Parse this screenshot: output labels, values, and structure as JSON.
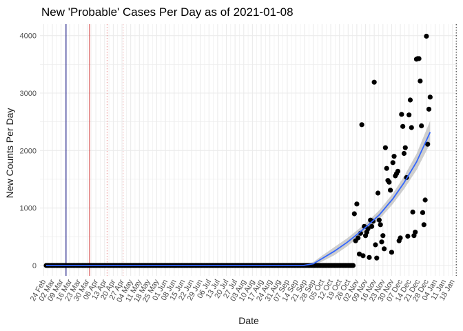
{
  "chart_data": {
    "type": "scatter",
    "title": "New 'Probable' Cases Per Day as of 2021-01-08",
    "xlabel": "Date",
    "ylabel": "New Counts Per Day",
    "x_type": "date",
    "xlim": [
      "2020-02-21",
      "2021-01-22"
    ],
    "ylim": [
      -180,
      4200
    ],
    "grid": true,
    "y_ticks": [
      0,
      1000,
      2000,
      3000,
      4000
    ],
    "x_ticks": [
      "2020-02-24",
      "2020-03-02",
      "2020-03-09",
      "2020-03-16",
      "2020-03-23",
      "2020-03-30",
      "2020-04-06",
      "2020-04-13",
      "2020-04-20",
      "2020-04-27",
      "2020-05-04",
      "2020-05-11",
      "2020-05-18",
      "2020-05-25",
      "2020-06-01",
      "2020-06-08",
      "2020-06-15",
      "2020-06-22",
      "2020-06-29",
      "2020-07-06",
      "2020-07-13",
      "2020-07-20",
      "2020-07-27",
      "2020-08-03",
      "2020-08-10",
      "2020-08-17",
      "2020-08-24",
      "2020-08-31",
      "2020-09-07",
      "2020-09-14",
      "2020-09-21",
      "2020-09-28",
      "2020-10-05",
      "2020-10-12",
      "2020-10-19",
      "2020-10-26",
      "2020-11-02",
      "2020-11-09",
      "2020-11-16",
      "2020-11-23",
      "2020-11-30",
      "2020-12-07",
      "2020-12-14",
      "2020-12-21",
      "2020-12-28",
      "2021-01-04",
      "2021-01-11",
      "2021-01-18"
    ],
    "x_tick_labels": [
      "24 Feb",
      "02 Mar",
      "09 Mar",
      "16 Mar",
      "23 Mar",
      "30 Mar",
      "06 Apr",
      "13 Apr",
      "20 Apr",
      "27 Apr",
      "04 May",
      "11 May",
      "18 May",
      "25 May",
      "01 Jun",
      "08 Jun",
      "15 Jun",
      "22 Jun",
      "29 Jun",
      "06 Jul",
      "13 Jul",
      "20 Jul",
      "27 Jul",
      "03 Aug",
      "10 Aug",
      "17 Aug",
      "24 Aug",
      "31 Aug",
      "07 Sep",
      "14 Sep",
      "21 Sep",
      "28 Sep",
      "05 Oct",
      "12 Oct",
      "19 Oct",
      "26 Oct",
      "02 Nov",
      "09 Nov",
      "16 Nov",
      "23 Nov",
      "30 Nov",
      "07 Dec",
      "14 Dec",
      "21 Dec",
      "28 Dec",
      "04 Jan",
      "11 Jan",
      "18 Jan"
    ],
    "zero_range": [
      "2020-02-26",
      "2020-10-30"
    ],
    "points": [
      {
        "x": "2020-10-31",
        "y": 900
      },
      {
        "x": "2020-11-01",
        "y": 430
      },
      {
        "x": "2020-11-02",
        "y": 1070
      },
      {
        "x": "2020-11-03",
        "y": 480
      },
      {
        "x": "2020-11-04",
        "y": 200
      },
      {
        "x": "2020-11-05",
        "y": 560
      },
      {
        "x": "2020-11-06",
        "y": 2450
      },
      {
        "x": "2020-11-07",
        "y": 170
      },
      {
        "x": "2020-11-08",
        "y": 680
      },
      {
        "x": "2020-11-09",
        "y": 520
      },
      {
        "x": "2020-11-10",
        "y": 580
      },
      {
        "x": "2020-11-11",
        "y": 640
      },
      {
        "x": "2020-11-12",
        "y": 140
      },
      {
        "x": "2020-11-13",
        "y": 790
      },
      {
        "x": "2020-11-14",
        "y": 680
      },
      {
        "x": "2020-11-15",
        "y": 770
      },
      {
        "x": "2020-11-16",
        "y": 3190
      },
      {
        "x": "2020-11-17",
        "y": 360
      },
      {
        "x": "2020-11-18",
        "y": 130
      },
      {
        "x": "2020-11-19",
        "y": 1260
      },
      {
        "x": "2020-11-20",
        "y": 790
      },
      {
        "x": "2020-11-21",
        "y": 710
      },
      {
        "x": "2020-11-22",
        "y": 410
      },
      {
        "x": "2020-11-23",
        "y": 520
      },
      {
        "x": "2020-11-24",
        "y": 290
      },
      {
        "x": "2020-11-25",
        "y": 2050
      },
      {
        "x": "2020-11-26",
        "y": 1690
      },
      {
        "x": "2020-11-27",
        "y": 1480
      },
      {
        "x": "2020-11-28",
        "y": 1450
      },
      {
        "x": "2020-11-29",
        "y": 1310
      },
      {
        "x": "2020-11-30",
        "y": 230
      },
      {
        "x": "2020-12-01",
        "y": 1790
      },
      {
        "x": "2020-12-02",
        "y": 1900
      },
      {
        "x": "2020-12-03",
        "y": 1560
      },
      {
        "x": "2020-12-04",
        "y": 1600
      },
      {
        "x": "2020-12-05",
        "y": 1640
      },
      {
        "x": "2020-12-06",
        "y": 430
      },
      {
        "x": "2020-12-07",
        "y": 480
      },
      {
        "x": "2020-12-08",
        "y": 2630
      },
      {
        "x": "2020-12-09",
        "y": 2420
      },
      {
        "x": "2020-12-10",
        "y": 1950
      },
      {
        "x": "2020-12-11",
        "y": 2050
      },
      {
        "x": "2020-12-12",
        "y": 1530
      },
      {
        "x": "2020-12-13",
        "y": 510
      },
      {
        "x": "2020-12-14",
        "y": 2620
      },
      {
        "x": "2020-12-15",
        "y": 2880
      },
      {
        "x": "2020-12-16",
        "y": 2400
      },
      {
        "x": "2020-12-17",
        "y": 930
      },
      {
        "x": "2020-12-18",
        "y": 520
      },
      {
        "x": "2020-12-19",
        "y": 580
      },
      {
        "x": "2020-12-20",
        "y": 3590
      },
      {
        "x": "2020-12-21",
        "y": 3600
      },
      {
        "x": "2020-12-22",
        "y": 3600
      },
      {
        "x": "2020-12-23",
        "y": 3210
      },
      {
        "x": "2020-12-24",
        "y": 2430
      },
      {
        "x": "2020-12-25",
        "y": 920
      },
      {
        "x": "2020-12-26",
        "y": 710
      },
      {
        "x": "2020-12-27",
        "y": 1140
      },
      {
        "x": "2020-12-28",
        "y": 3990
      },
      {
        "x": "2020-12-29",
        "y": 2110
      },
      {
        "x": "2020-12-30",
        "y": 2720
      },
      {
        "x": "2020-12-31",
        "y": 2930
      }
    ],
    "trend": {
      "x": [
        "2020-02-26",
        "2020-03-15",
        "2020-04-01",
        "2020-05-01",
        "2020-06-01",
        "2020-07-01",
        "2020-08-01",
        "2020-09-01",
        "2020-09-20",
        "2020-09-28",
        "2020-10-05",
        "2020-10-15",
        "2020-10-25",
        "2020-11-01",
        "2020-11-10",
        "2020-11-20",
        "2020-12-01",
        "2020-12-10",
        "2020-12-20",
        "2020-12-31"
      ],
      "y": [
        0,
        0,
        0,
        0,
        0,
        0,
        0,
        0,
        0,
        30,
        120,
        250,
        400,
        520,
        680,
        880,
        1160,
        1440,
        1800,
        2320
      ],
      "band": [
        0,
        0,
        0,
        0,
        0,
        0,
        0,
        0,
        0,
        30,
        50,
        70,
        70,
        70,
        70,
        80,
        90,
        110,
        140,
        200
      ]
    },
    "vlines": [
      {
        "x": "2020-03-13",
        "color": "#00007a",
        "style": "solid"
      },
      {
        "x": "2020-04-01",
        "color": "#cc2222",
        "style": "solid"
      },
      {
        "x": "2020-04-15",
        "color": "#e68080",
        "style": "dotted"
      },
      {
        "x": "2020-04-28",
        "color": "#f2b5b5",
        "style": "dotted"
      },
      {
        "x": "2021-01-21",
        "color": "#222222",
        "style": "dotted"
      }
    ],
    "colors": {
      "point": "#000000",
      "trend_line": "#3366ff",
      "trend_band": "#bdbdbd",
      "grid": "#ebebeb"
    }
  }
}
